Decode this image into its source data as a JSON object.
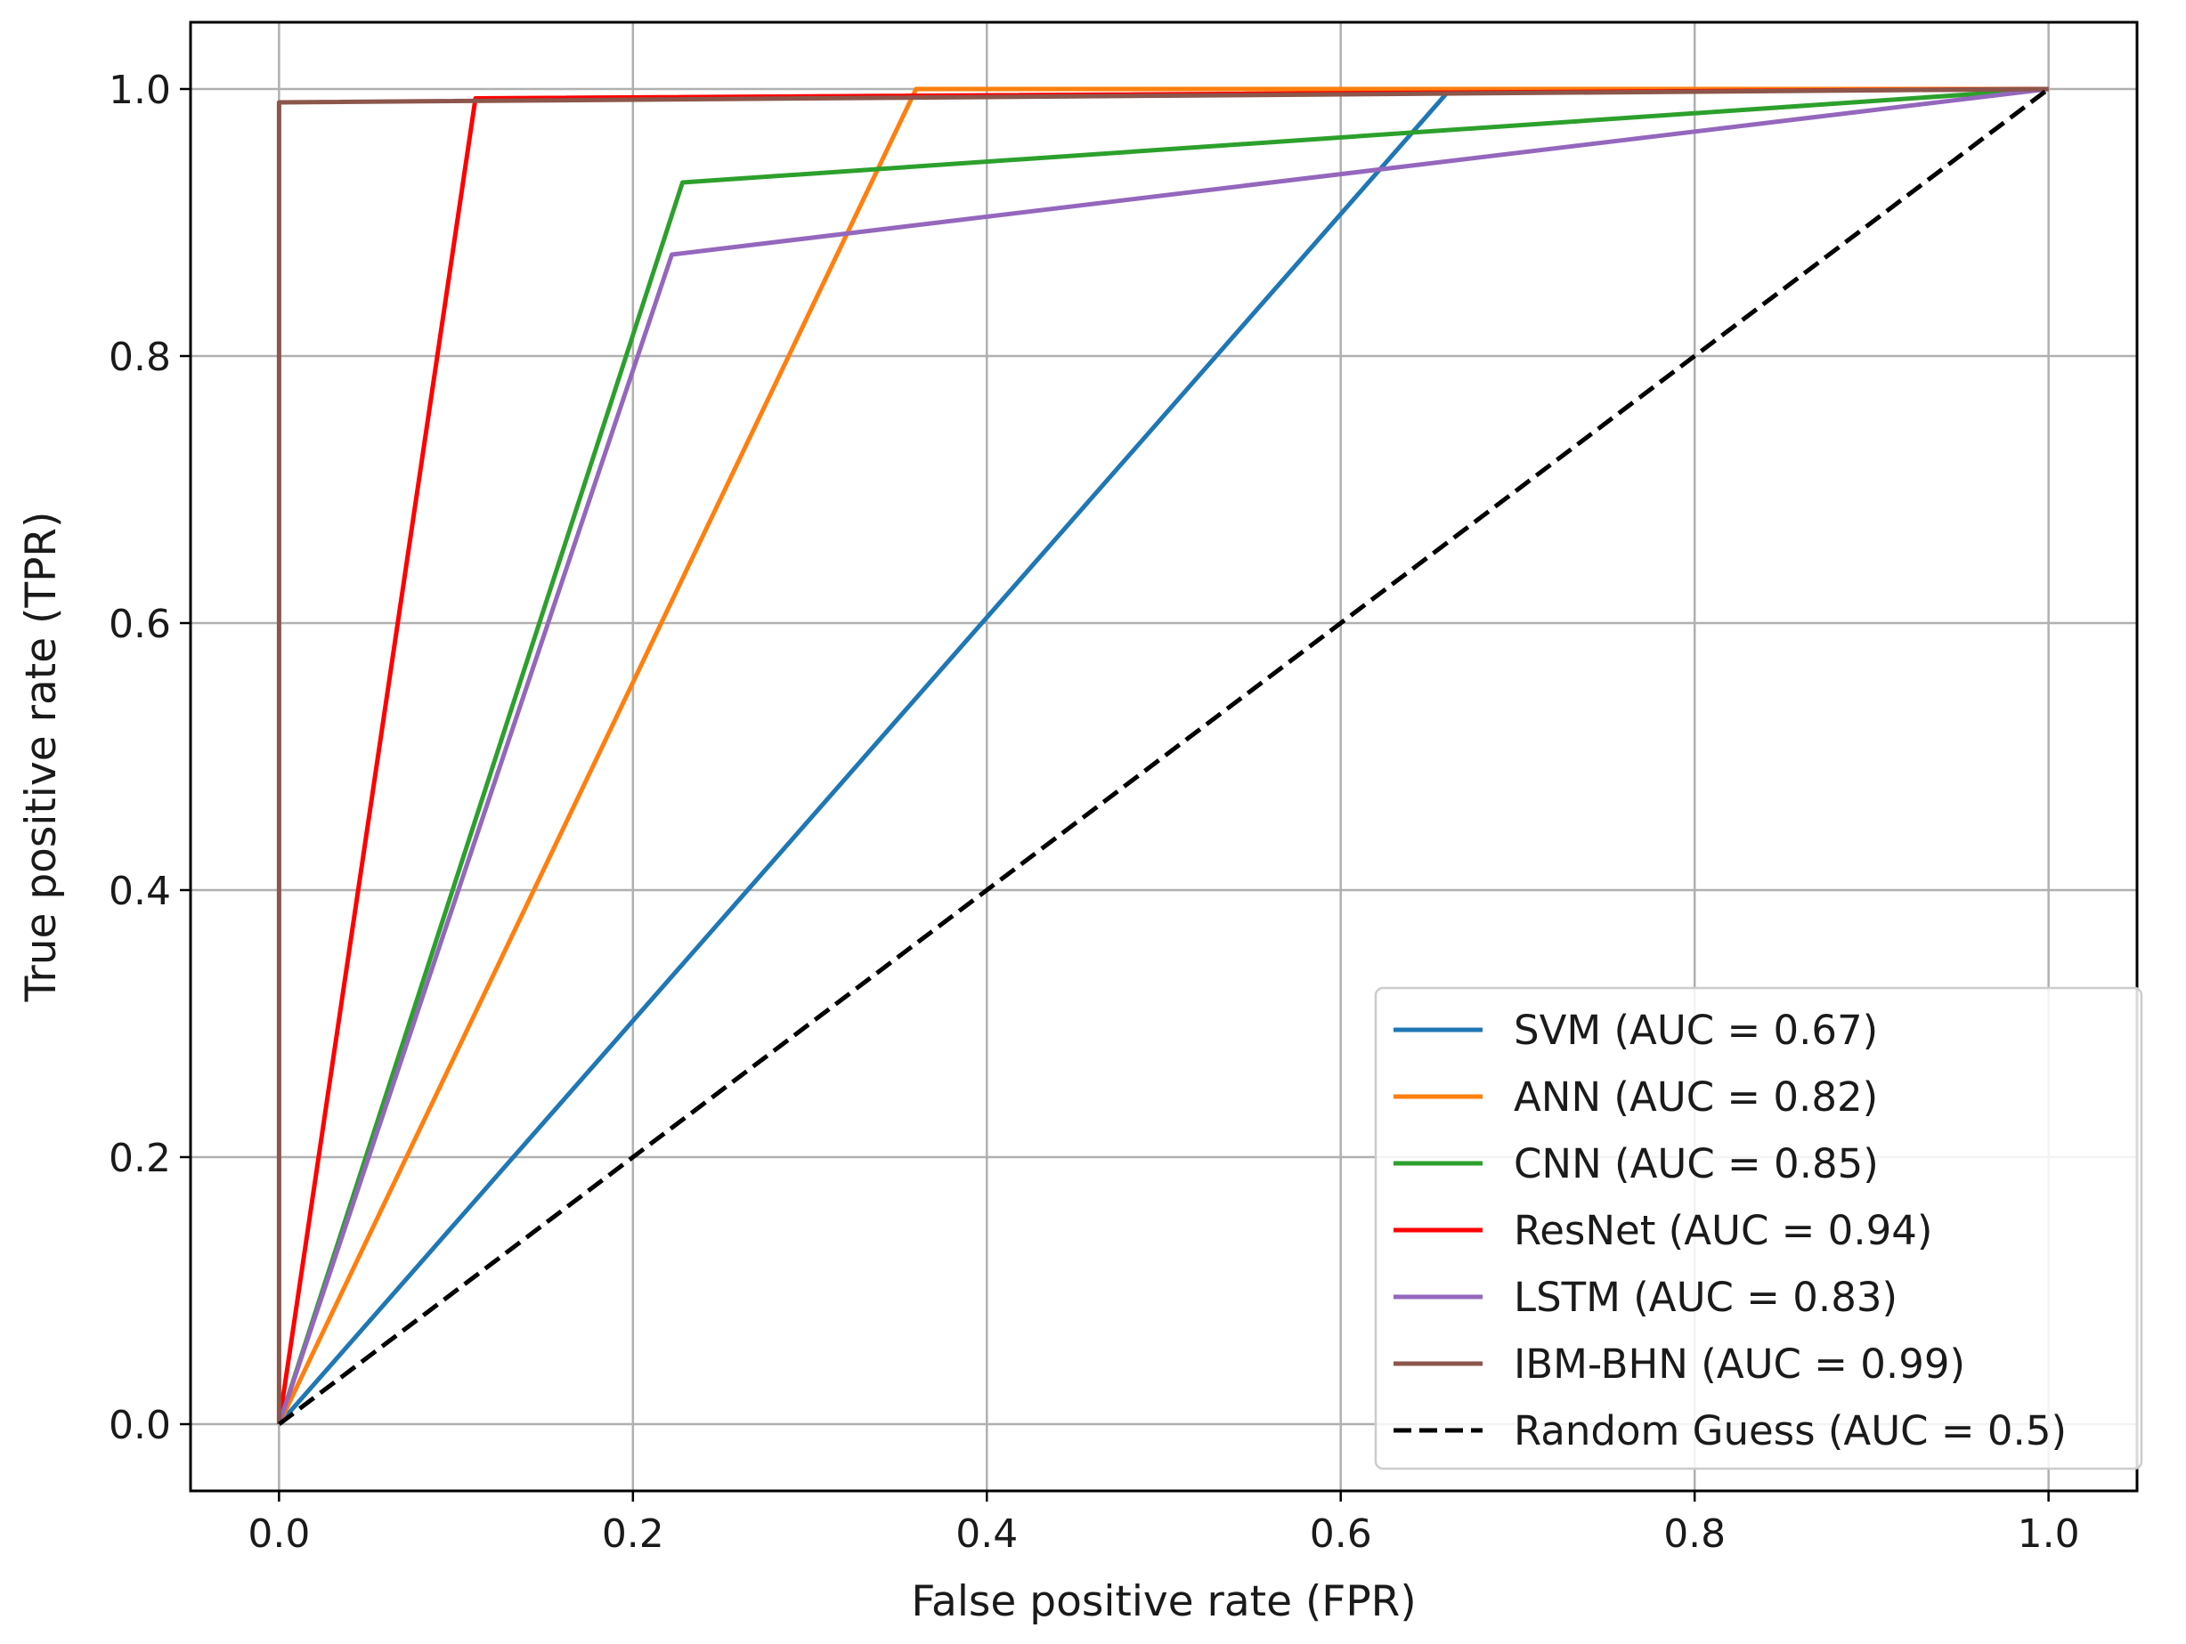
{
  "chart_data": {
    "type": "line",
    "title": "",
    "xlabel": "False positive rate (FPR)",
    "ylabel": "True positive rate (TPR)",
    "xlim": [
      -0.05,
      1.05
    ],
    "ylim": [
      -0.05,
      1.05
    ],
    "xticks": [
      0.0,
      0.2,
      0.4,
      0.6,
      0.8,
      1.0
    ],
    "yticks": [
      0.0,
      0.2,
      0.4,
      0.6,
      0.8,
      1.0
    ],
    "xtick_labels": [
      "0.0",
      "0.2",
      "0.4",
      "0.6",
      "0.8",
      "1.0"
    ],
    "ytick_labels": [
      "0.0",
      "0.2",
      "0.4",
      "0.6",
      "0.8",
      "1.0"
    ],
    "grid": true,
    "legend_position": "lower-right",
    "series": [
      {
        "name": "SVM (AUC = 0.67)",
        "color": "#1f77b4",
        "dash": "solid",
        "x": [
          0.0,
          0.662,
          1.0
        ],
        "y": [
          0.0,
          1.0,
          1.0
        ]
      },
      {
        "name": "ANN (AUC = 0.82)",
        "color": "#ff7f0e",
        "dash": "solid",
        "x": [
          0.0,
          0.36,
          1.0
        ],
        "y": [
          0.0,
          1.0,
          1.0
        ]
      },
      {
        "name": "CNN (AUC = 0.85)",
        "color": "#2ca02c",
        "dash": "solid",
        "x": [
          0.0,
          0.228,
          1.0
        ],
        "y": [
          0.0,
          0.93,
          1.0
        ]
      },
      {
        "name": "ResNet (AUC = 0.94)",
        "color": "#ff0000",
        "dash": "solid",
        "x": [
          0.0,
          0.111,
          1.0
        ],
        "y": [
          0.0,
          0.993,
          1.0
        ]
      },
      {
        "name": "LSTM (AUC = 0.83)",
        "color": "#9467bd",
        "dash": "solid",
        "x": [
          0.0,
          0.222,
          1.0
        ],
        "y": [
          0.0,
          0.876,
          1.0
        ]
      },
      {
        "name": "IBM-BHN (AUC = 0.99)",
        "color": "#8c564b",
        "dash": "solid",
        "x": [
          0.0,
          0.0,
          1.0
        ],
        "y": [
          0.0,
          0.99,
          1.0
        ]
      },
      {
        "name": "Random Guess (AUC = 0.5)",
        "color": "#000000",
        "dash": "dashed",
        "x": [
          0.0,
          1.0
        ],
        "y": [
          0.0,
          1.0
        ]
      }
    ]
  }
}
